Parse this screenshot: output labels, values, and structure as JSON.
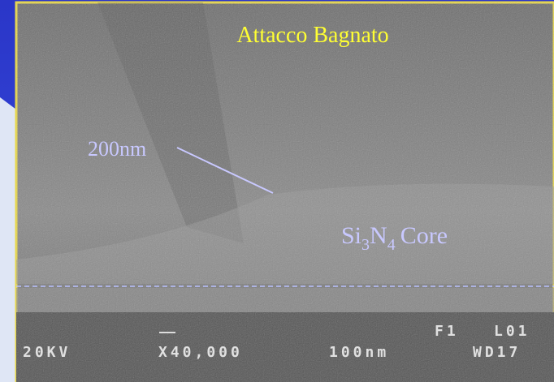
{
  "title": "Attacco Bagnato",
  "thickness_label": "200nm",
  "core_label": {
    "base1": "Si",
    "sub1": "3",
    "base2": "N",
    "sub2": "4",
    "rest": "Core"
  },
  "sem_info": {
    "voltage": "20KV",
    "magnification": "X40,000",
    "scale": "100nm",
    "frame": "F1",
    "line": "L01",
    "working_distance": "WD17"
  }
}
